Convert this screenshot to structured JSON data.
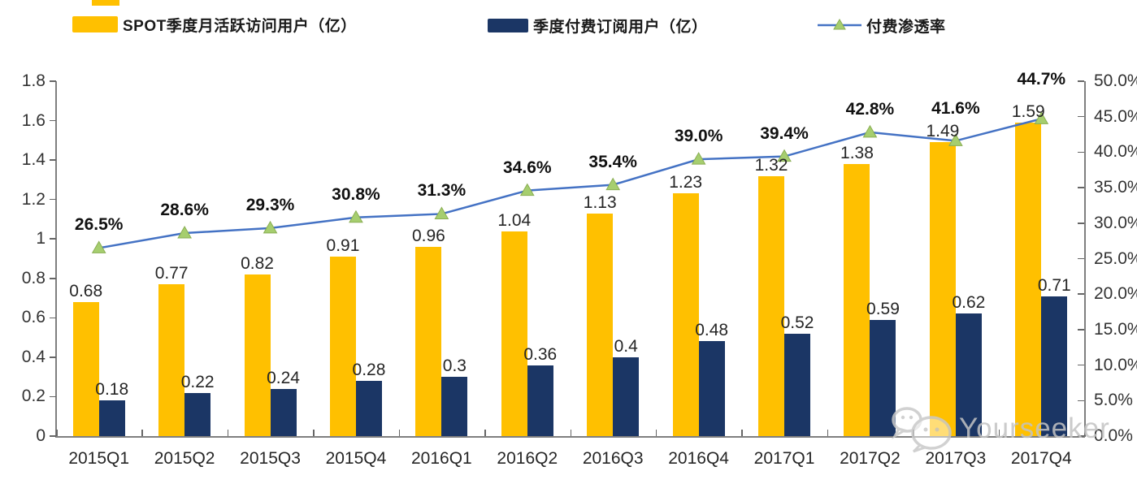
{
  "legend": {
    "items": [
      {
        "label": "SPOT季度月活跃访问用户（亿）",
        "type": "bar",
        "color": "#FFC000"
      },
      {
        "label": "季度付费订阅用户（亿）",
        "type": "bar",
        "color": "#1B3665"
      },
      {
        "label": "付费渗透率",
        "type": "line",
        "line_color": "#4472C4",
        "marker_color": "#A6CE6F"
      }
    ]
  },
  "watermark": {
    "text": "Yourseeker",
    "icon": "wechat-chat-bubbles"
  },
  "chart_data": {
    "type": "combo-bar-line",
    "categories": [
      "2015Q1",
      "2015Q2",
      "2015Q3",
      "2015Q4",
      "2016Q1",
      "2016Q2",
      "2016Q3",
      "2016Q4",
      "2017Q1",
      "2017Q2",
      "2017Q3",
      "2017Q4"
    ],
    "series": [
      {
        "name": "SPOT季度月活跃访问用户（亿）",
        "type": "bar",
        "axis": "left",
        "color": "#FFC000",
        "values": [
          0.68,
          0.77,
          0.82,
          0.91,
          0.96,
          1.04,
          1.13,
          1.23,
          1.32,
          1.38,
          1.49,
          1.59
        ],
        "labels": [
          "0.68",
          "0.77",
          "0.82",
          "0.91",
          "0.96",
          "1.04",
          "1.13",
          "1.23",
          "1.32",
          "1.38",
          "1.49",
          "1.59"
        ]
      },
      {
        "name": "季度付费订阅用户（亿）",
        "type": "bar",
        "axis": "left",
        "color": "#1B3665",
        "values": [
          0.18,
          0.22,
          0.24,
          0.28,
          0.3,
          0.36,
          0.4,
          0.48,
          0.52,
          0.59,
          0.62,
          0.71
        ],
        "labels": [
          "0.18",
          "0.22",
          "0.24",
          "0.28",
          "0.3",
          "0.36",
          "0.4",
          "0.48",
          "0.52",
          "0.59",
          "0.62",
          "0.71"
        ]
      },
      {
        "name": "付费渗透率",
        "type": "line",
        "axis": "right",
        "color": "#4472C4",
        "marker": "triangle",
        "marker_color": "#A6CE6F",
        "values": [
          26.5,
          28.6,
          29.3,
          30.8,
          31.3,
          34.6,
          35.4,
          39.0,
          39.4,
          42.8,
          41.6,
          44.7
        ],
        "labels": [
          "26.5%",
          "28.6%",
          "29.3%",
          "30.8%",
          "31.3%",
          "34.6%",
          "35.4%",
          "39.0%",
          "39.4%",
          "42.8%",
          "41.6%",
          "44.7%"
        ]
      }
    ],
    "left_axis": {
      "min": 0,
      "max": 1.8,
      "step": 0.2,
      "tick_labels": [
        "0",
        "0.2",
        "0.4",
        "0.6",
        "0.8",
        "1",
        "1.2",
        "1.4",
        "1.6",
        "1.8"
      ]
    },
    "right_axis": {
      "min": 0,
      "max": 50,
      "step": 5,
      "tick_labels": [
        "0.0%",
        "5.0%",
        "10.0%",
        "15.0%",
        "20.0%",
        "25.0%",
        "30.0%",
        "35.0%",
        "40.0%",
        "45.0%",
        "50.0%"
      ]
    },
    "grid": false,
    "legend_position": "top"
  }
}
